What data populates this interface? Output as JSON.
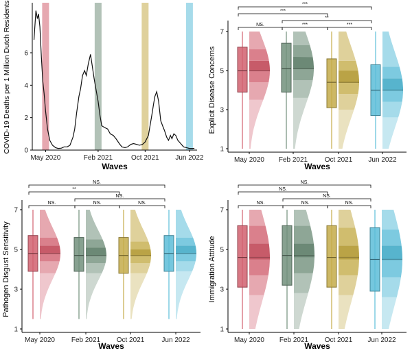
{
  "colors": {
    "May 2020": "#d1606f",
    "Feb 2021": "#72907c",
    "Oct 2021": "#c4ac4a",
    "Jun 2022": "#5cbdd8"
  },
  "chart_data": [
    {
      "type": "line",
      "ylabel": "COVID-19 Deaths per 1 Million Dutch Residents",
      "xlabel": "Waves",
      "xticks": [
        "May 2020",
        "Feb 2021",
        "Oct 2021",
        "Jun 2022"
      ],
      "yticks": [
        "0",
        "2",
        "4",
        "6"
      ],
      "ylim": [
        0,
        9
      ],
      "wave_highlights": [
        "May 2020",
        "Feb 2021",
        "Oct 2021",
        "Jun 2022"
      ],
      "series": [
        {
          "x": [
            "2020-03-10",
            "2020-03-20",
            "2020-03-28",
            "2020-04-03",
            "2020-04-10",
            "2020-04-18",
            "2020-04-25",
            "2020-05-02",
            "2020-05-10",
            "2020-05-20",
            "2020-06-01",
            "2020-06-15",
            "2020-07-01",
            "2020-07-15",
            "2020-08-01",
            "2020-08-15",
            "2020-09-01",
            "2020-09-15",
            "2020-10-01",
            "2020-10-10",
            "2020-10-20",
            "2020-11-01",
            "2020-11-10",
            "2020-11-20",
            "2020-12-01",
            "2020-12-10",
            "2020-12-20",
            "2021-01-01",
            "2021-01-10",
            "2021-01-20",
            "2021-02-01",
            "2021-02-10",
            "2021-02-20",
            "2021-03-01",
            "2021-03-15",
            "2021-04-01",
            "2021-04-15",
            "2021-05-01",
            "2021-05-15",
            "2021-06-01",
            "2021-06-15",
            "2021-07-01",
            "2021-07-15",
            "2021-08-01",
            "2021-08-15",
            "2021-09-01",
            "2021-09-15",
            "2021-10-01",
            "2021-10-15",
            "2021-11-01",
            "2021-11-10",
            "2021-11-20",
            "2021-11-28",
            "2021-12-05",
            "2021-12-15",
            "2021-12-25",
            "2022-01-05",
            "2022-01-15",
            "2022-01-25",
            "2022-02-05",
            "2022-02-15",
            "2022-02-25",
            "2022-03-05",
            "2022-03-15",
            "2022-03-25",
            "2022-04-05",
            "2022-04-20",
            "2022-05-05",
            "2022-05-20",
            "2022-06-05",
            "2022-06-20",
            "2022-07-01"
          ],
          "y": [
            6.8,
            8.6,
            8.1,
            8.4,
            7.6,
            5.7,
            4.3,
            3.5,
            2.4,
            1.3,
            0.6,
            0.3,
            0.15,
            0.1,
            0.12,
            0.2,
            0.2,
            0.3,
            0.8,
            1.3,
            2.3,
            3.3,
            3.8,
            4.6,
            4.9,
            4.6,
            5.3,
            5.9,
            5.2,
            4.4,
            3.6,
            3.0,
            2.1,
            1.5,
            1.4,
            1.3,
            1.0,
            0.9,
            0.7,
            0.4,
            0.2,
            0.15,
            0.2,
            0.35,
            0.4,
            0.35,
            0.3,
            0.35,
            0.5,
            0.9,
            1.5,
            2.2,
            2.8,
            3.3,
            3.6,
            3.0,
            1.8,
            1.5,
            1.2,
            0.8,
            0.6,
            0.9,
            0.7,
            1.0,
            0.9,
            0.6,
            0.4,
            0.2,
            0.15,
            0.1,
            0.1,
            0.1
          ]
        }
      ]
    },
    {
      "type": "raincloud",
      "ylabel": "Explicit Disease Concerns",
      "xlabel": "Waves",
      "categories": [
        "May 2020",
        "Feb 2021",
        "Oct 2021",
        "Jun 2022"
      ],
      "yticks": [
        "1",
        "3",
        "5",
        "7"
      ],
      "ylim": [
        1,
        7
      ],
      "boxes": [
        {
          "min": 1,
          "q1": 3.9,
          "median": 5.0,
          "q3": 6.2,
          "max": 7,
          "quantiles": [
            3.5,
            4.4,
            5.0,
            5.5,
            6.1
          ]
        },
        {
          "min": 1,
          "q1": 3.9,
          "median": 5.1,
          "q3": 6.4,
          "max": 7,
          "quantiles": [
            3.6,
            4.5,
            5.1,
            5.7,
            6.3
          ]
        },
        {
          "min": 1,
          "q1": 3.1,
          "median": 4.4,
          "q3": 5.6,
          "max": 7,
          "quantiles": [
            3.0,
            3.8,
            4.4,
            5.0,
            5.5
          ]
        },
        {
          "min": 1,
          "q1": 2.7,
          "median": 4.0,
          "q3": 5.3,
          "max": 7,
          "quantiles": [
            2.6,
            3.4,
            4.0,
            4.6,
            5.2
          ]
        }
      ],
      "comparisons": [
        {
          "from": "May 2020",
          "to": "Jun 2022",
          "label": "***"
        },
        {
          "from": "May 2020",
          "to": "Oct 2021",
          "label": "***"
        },
        {
          "from": "May 2020",
          "to": "Feb 2021",
          "label": "NS."
        },
        {
          "from": "Feb 2021",
          "to": "Oct 2021",
          "label": "***"
        },
        {
          "from": "Feb 2021",
          "to": "Jun 2022",
          "label": "**"
        },
        {
          "from": "Oct 2021",
          "to": "Jun 2022",
          "label": "***"
        }
      ]
    },
    {
      "type": "raincloud",
      "ylabel": "Pathogen Disgust Sensitivity",
      "xlabel": "Waves",
      "categories": [
        "May 2020",
        "Feb 2021",
        "Oct 2021",
        "Jun 2022"
      ],
      "yticks": [
        "1",
        "3",
        "5",
        "7"
      ],
      "ylim": [
        1,
        7
      ],
      "boxes": [
        {
          "min": 1.5,
          "q1": 3.9,
          "median": 4.8,
          "q3": 5.7,
          "max": 7,
          "quantiles": [
            3.8,
            4.4,
            4.8,
            5.2,
            5.6
          ]
        },
        {
          "min": 1.5,
          "q1": 3.9,
          "median": 4.7,
          "q3": 5.6,
          "max": 7,
          "quantiles": [
            3.8,
            4.3,
            4.7,
            5.1,
            5.5
          ]
        },
        {
          "min": 1.5,
          "q1": 3.8,
          "median": 4.7,
          "q3": 5.6,
          "max": 7,
          "quantiles": [
            3.8,
            4.3,
            4.7,
            5.0,
            5.4
          ]
        },
        {
          "min": 1.5,
          "q1": 3.9,
          "median": 4.8,
          "q3": 5.7,
          "max": 7,
          "quantiles": [
            3.9,
            4.4,
            4.8,
            5.2,
            5.6
          ]
        }
      ],
      "comparisons": [
        {
          "from": "May 2020",
          "to": "Jun 2022",
          "label": "NS."
        },
        {
          "from": "May 2020",
          "to": "Oct 2021",
          "label": "**"
        },
        {
          "from": "May 2020",
          "to": "Feb 2021",
          "label": "NS."
        },
        {
          "from": "Feb 2021",
          "to": "Oct 2021",
          "label": "NS."
        },
        {
          "from": "Feb 2021",
          "to": "Jun 2022",
          "label": "NS."
        },
        {
          "from": "Oct 2021",
          "to": "Jun 2022",
          "label": "NS."
        }
      ]
    },
    {
      "type": "raincloud",
      "ylabel": "Immigration Attitude",
      "xlabel": "Waves",
      "categories": [
        "May 2020",
        "Feb 2021",
        "Oct 2021",
        "Jun 2022"
      ],
      "yticks": [
        "1",
        "3",
        "5",
        "7"
      ],
      "ylim": [
        1,
        7
      ],
      "boxes": [
        {
          "min": 1,
          "q1": 3.1,
          "median": 4.6,
          "q3": 6.2,
          "max": 7,
          "quantiles": [
            2.7,
            3.7,
            4.5,
            5.3,
            6.2
          ]
        },
        {
          "min": 1,
          "q1": 3.2,
          "median": 4.7,
          "q3": 6.2,
          "max": 7,
          "quantiles": [
            2.8,
            3.8,
            4.6,
            5.3,
            6.2
          ]
        },
        {
          "min": 1,
          "q1": 3.1,
          "median": 4.6,
          "q3": 6.2,
          "max": 7,
          "quantiles": [
            2.7,
            3.7,
            4.5,
            5.2,
            6.1
          ]
        },
        {
          "min": 1,
          "q1": 2.9,
          "median": 4.5,
          "q3": 6.1,
          "max": 7,
          "quantiles": [
            2.6,
            3.6,
            4.5,
            5.2,
            6.0
          ]
        }
      ],
      "comparisons": [
        {
          "from": "May 2020",
          "to": "Jun 2022",
          "label": "NS."
        },
        {
          "from": "May 2020",
          "to": "Oct 2021",
          "label": "NS."
        },
        {
          "from": "May 2020",
          "to": "Feb 2021",
          "label": "NS."
        },
        {
          "from": "Feb 2021",
          "to": "Oct 2021",
          "label": "NS."
        },
        {
          "from": "Feb 2021",
          "to": "Jun 2022",
          "label": "NS."
        },
        {
          "from": "Oct 2021",
          "to": "Jun 2022",
          "label": "NS."
        }
      ]
    }
  ]
}
